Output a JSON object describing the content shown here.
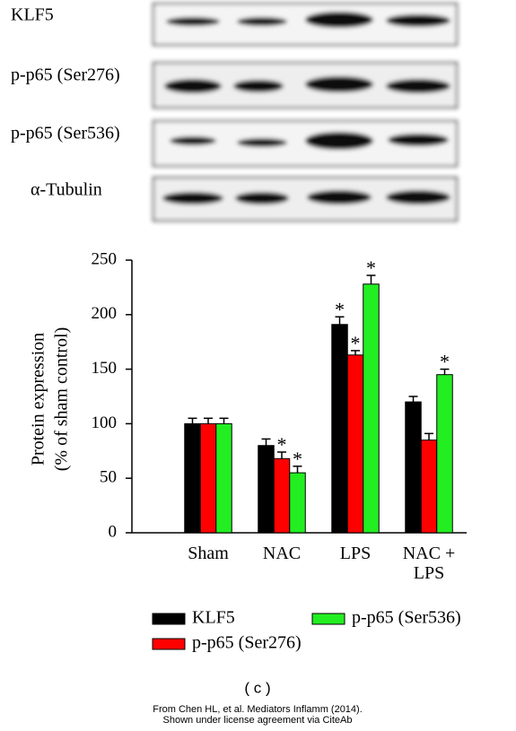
{
  "blots": [
    {
      "label": "KLF5"
    },
    {
      "label": "p-p65 (Ser276)"
    },
    {
      "label": "p-p65 (Ser536)"
    },
    {
      "label": "α-Tubulin"
    }
  ],
  "chart_data": {
    "type": "bar",
    "ylabel": [
      "Protein expression",
      "(% of sham control)"
    ],
    "categories": [
      "Sham",
      "NAC",
      "LPS",
      "NAC +\nLPS"
    ],
    "series": [
      {
        "name": "KLF5",
        "color": "#000000",
        "values": [
          100,
          80,
          191,
          120
        ],
        "errors": [
          5,
          6,
          7,
          5
        ],
        "markers": [
          null,
          null,
          "*",
          null
        ]
      },
      {
        "name": "p-p65 (Ser276)",
        "color": "#ff0000",
        "values": [
          100,
          68,
          163,
          85
        ],
        "errors": [
          5,
          6,
          4,
          6
        ],
        "markers": [
          null,
          "*",
          "*",
          null
        ]
      },
      {
        "name": "p-p65 (Ser536)",
        "color": "#22ee22",
        "values": [
          100,
          55,
          228,
          145
        ],
        "errors": [
          5,
          6,
          8,
          5
        ],
        "markers": [
          null,
          "*",
          "*",
          "*"
        ]
      }
    ],
    "ylim": [
      0,
      250
    ],
    "yticks": [
      0,
      50,
      100,
      150,
      200,
      250
    ]
  },
  "caption": "( c )",
  "credit": [
    "From Chen HL, et al. Mediators Inflamm (2014).",
    "Shown under license agreement via CiteAb"
  ]
}
